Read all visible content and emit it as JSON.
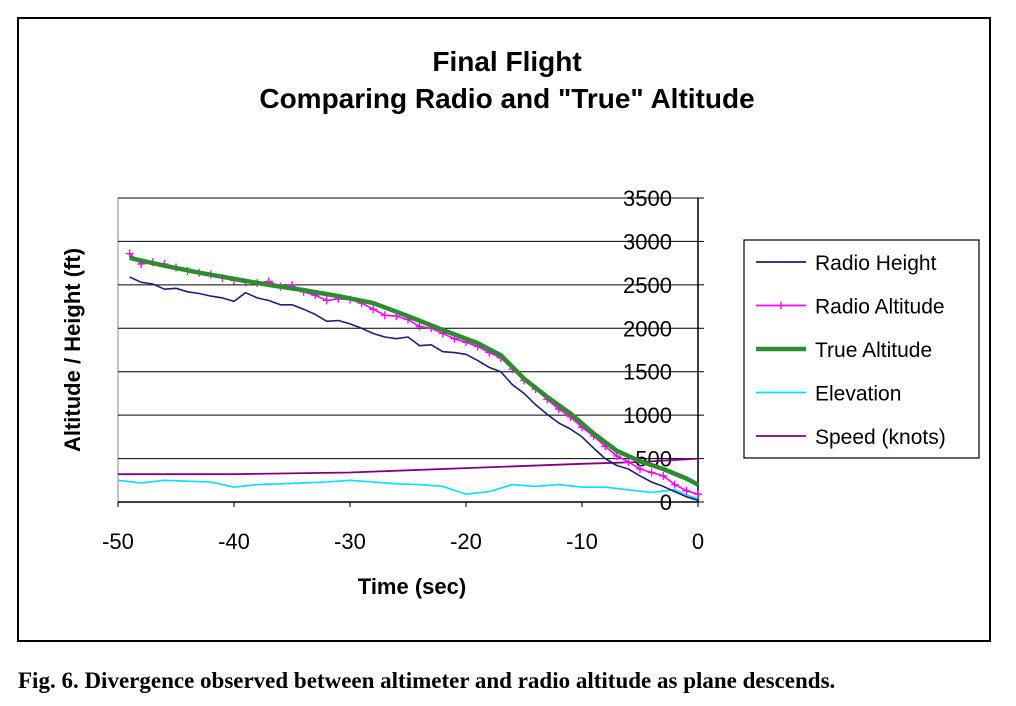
{
  "chart_data": {
    "type": "line",
    "title": "Final Flight",
    "subtitle": "Comparing Radio and \"True\" Altitude",
    "xlabel": "Time (sec)",
    "ylabel": "Altitude / Height (ft)",
    "xlim": [
      -50,
      0
    ],
    "ylim": [
      0,
      3500
    ],
    "x_ticks": [
      "-50",
      "-40",
      "-30",
      "-20",
      "-10",
      "0"
    ],
    "y_ticks": [
      "0",
      "500",
      "1000",
      "1500",
      "2000",
      "2500",
      "3000",
      "3500"
    ],
    "grid": "horizontal",
    "legend_position": "right",
    "series": [
      {
        "name": "Radio Height",
        "color": "#1f1f7a",
        "marker": "none",
        "x": [
          -49,
          -48,
          -47,
          -46,
          -45,
          -44,
          -43,
          -42,
          -41,
          -40,
          -39,
          -38,
          -37,
          -36,
          -35,
          -34,
          -33,
          -32,
          -31,
          -30,
          -29,
          -28,
          -27,
          -26,
          -25,
          -24,
          -23,
          -22,
          -21,
          -20,
          -19,
          -18,
          -17,
          -16,
          -15,
          -14,
          -13,
          -12,
          -11,
          -10,
          -9,
          -8,
          -7,
          -6,
          -5,
          -4,
          -3,
          -2,
          -1,
          0
        ],
        "y": [
          2590,
          2530,
          2510,
          2450,
          2460,
          2420,
          2400,
          2370,
          2350,
          2310,
          2410,
          2350,
          2320,
          2270,
          2270,
          2220,
          2160,
          2080,
          2090,
          2050,
          2000,
          1940,
          1900,
          1880,
          1900,
          1800,
          1810,
          1730,
          1720,
          1700,
          1630,
          1550,
          1500,
          1350,
          1250,
          1120,
          1010,
          910,
          840,
          750,
          620,
          500,
          420,
          380,
          300,
          230,
          180,
          120,
          60,
          20
        ]
      },
      {
        "name": "Radio Altitude",
        "color": "#ff00ff",
        "marker": "plus",
        "x": [
          -49,
          -48,
          -47,
          -46,
          -45,
          -44,
          -43,
          -42,
          -41,
          -40,
          -39,
          -38,
          -37,
          -36,
          -35,
          -34,
          -33,
          -32,
          -31,
          -30,
          -29,
          -28,
          -27,
          -26,
          -25,
          -24,
          -23,
          -22,
          -21,
          -20,
          -19,
          -18,
          -17,
          -16,
          -15,
          -14,
          -13,
          -12,
          -11,
          -10,
          -9,
          -8,
          -7,
          -6,
          -5,
          -4,
          -3,
          -2,
          -1,
          0
        ],
        "y": [
          2860,
          2740,
          2760,
          2740,
          2700,
          2660,
          2640,
          2620,
          2580,
          2550,
          2530,
          2520,
          2540,
          2480,
          2500,
          2420,
          2380,
          2320,
          2340,
          2330,
          2290,
          2220,
          2150,
          2140,
          2100,
          2020,
          2000,
          1940,
          1880,
          1840,
          1790,
          1720,
          1660,
          1530,
          1400,
          1300,
          1180,
          1070,
          980,
          860,
          760,
          640,
          530,
          460,
          380,
          340,
          300,
          200,
          130,
          90
        ]
      },
      {
        "name": "True Altitude",
        "color": "#2e8b2e",
        "marker": "none",
        "x": [
          -49,
          -46,
          -43,
          -40,
          -37,
          -34,
          -31,
          -28,
          -25,
          -22,
          -19,
          -17,
          -15,
          -13,
          -11,
          -9,
          -7,
          -5,
          -3,
          -1,
          0
        ],
        "y": [
          2810,
          2720,
          2640,
          2570,
          2500,
          2440,
          2370,
          2290,
          2140,
          1980,
          1830,
          1690,
          1420,
          1210,
          1020,
          790,
          590,
          470,
          380,
          270,
          200
        ]
      },
      {
        "name": "Elevation",
        "color": "#00e0ff",
        "marker": "none",
        "x": [
          -50,
          -48,
          -46,
          -44,
          -42,
          -40,
          -38,
          -36,
          -34,
          -32,
          -30,
          -28,
          -26,
          -24,
          -22,
          -20,
          -18,
          -16,
          -14,
          -12,
          -10,
          -8,
          -6,
          -4,
          -2,
          -1,
          0
        ],
        "y": [
          250,
          220,
          250,
          240,
          230,
          170,
          200,
          210,
          220,
          230,
          250,
          230,
          210,
          200,
          180,
          90,
          120,
          200,
          180,
          200,
          170,
          170,
          140,
          110,
          140,
          80,
          40
        ]
      },
      {
        "name": "Speed (knots)",
        "color": "#800080",
        "marker": "none",
        "x": [
          -50,
          -40,
          -30,
          -20,
          -10,
          -5,
          0
        ],
        "y": [
          320,
          320,
          340,
          390,
          440,
          460,
          500
        ]
      }
    ]
  },
  "caption": "Fig. 6.  Divergence observed between altimeter and radio altitude as plane descends."
}
